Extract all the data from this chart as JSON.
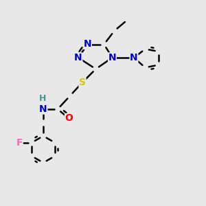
{
  "bg_color": "#e8e8e8",
  "atom_colors": {
    "C": "#000000",
    "N": "#0000cc",
    "S": "#cccc00",
    "O": "#ff0000",
    "F": "#ff69b4",
    "H": "#449988"
  },
  "bond_color": "#000000",
  "bond_width": 1.8,
  "font_size": 10
}
